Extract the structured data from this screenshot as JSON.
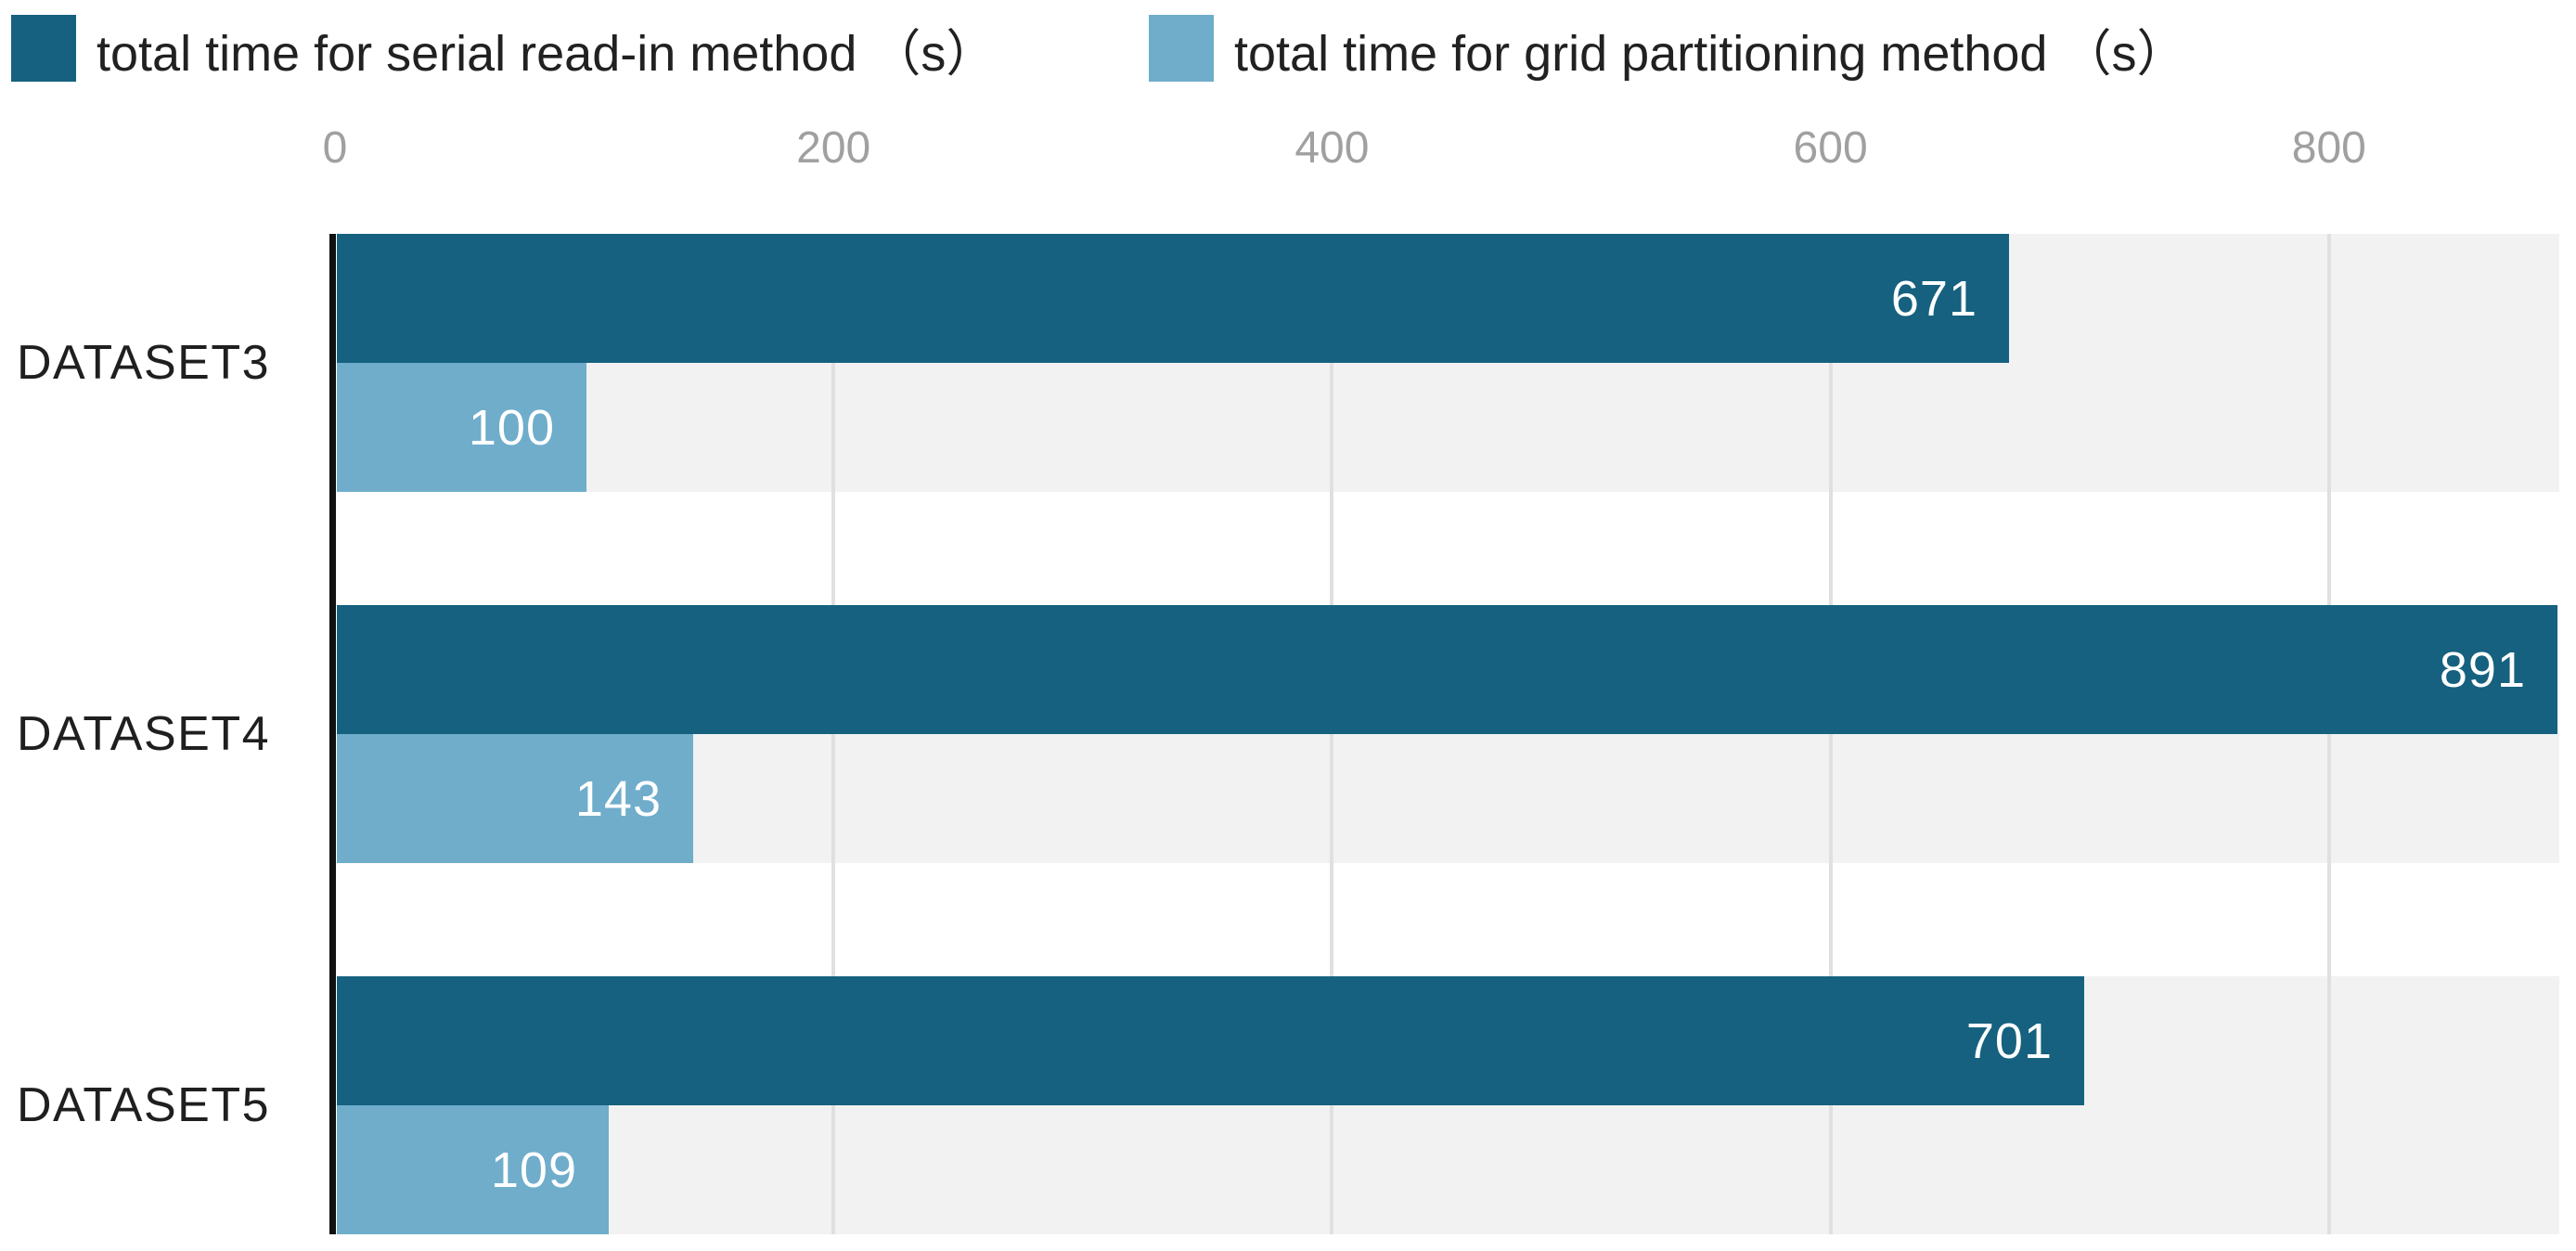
{
  "chart_data": {
    "type": "bar",
    "orientation": "horizontal",
    "title": "",
    "categories": [
      "DATASET3",
      "DATASET4",
      "DATASET5"
    ],
    "series": [
      {
        "name": "total time for serial read-in method （s）",
        "color": "#15617f",
        "values": [
          671,
          891,
          701
        ]
      },
      {
        "name": "total time for grid partitioning method （s）",
        "color": "#6fadcb",
        "values": [
          100,
          143,
          109
        ]
      }
    ],
    "x_tick_labels": [
      "0",
      "200",
      "400",
      "600",
      "800"
    ],
    "x_tick_values": [
      0,
      200,
      400,
      600,
      800
    ],
    "xlim": [
      0,
      891
    ],
    "grid": true,
    "legend_position": "top-left",
    "value_labels": true,
    "colors": {
      "band_background": "#f2f2f2",
      "gridline": "#e0e0e0",
      "axis_line": "#111111",
      "tick_label": "#a0a0a0",
      "category_label": "#1f1f1f",
      "value_label": "#ffffff",
      "legend_label": "#212121",
      "background": "#ffffff"
    }
  }
}
